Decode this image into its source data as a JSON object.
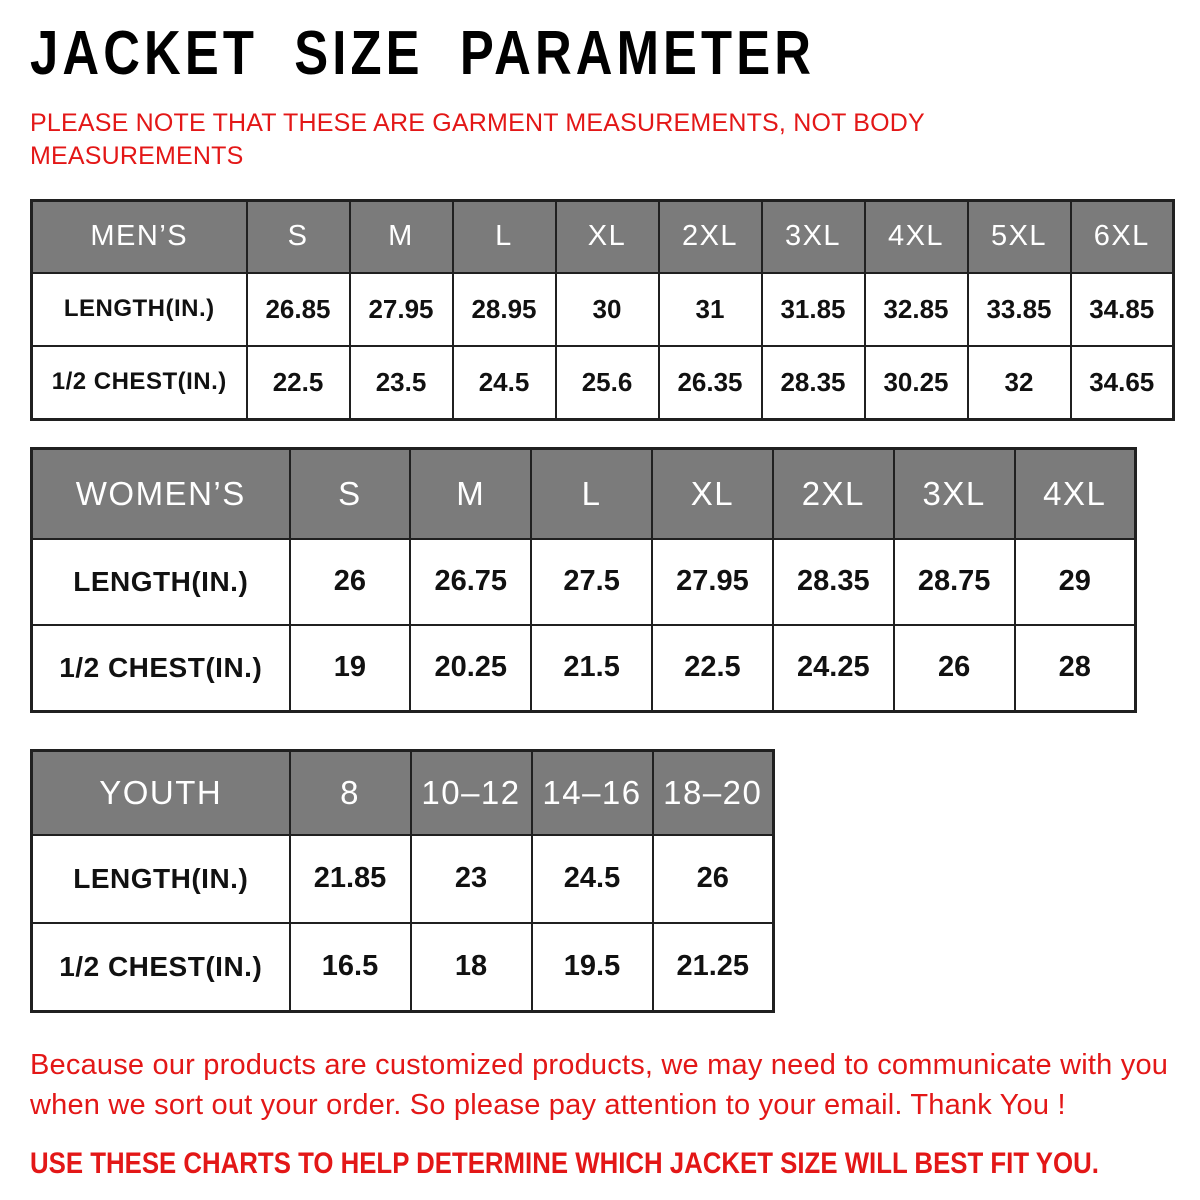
{
  "title": "JACKET SIZE PARAMETER",
  "note": {
    "lines": [
      "PLEASE NOTE THAT THESE ARE GARMENT MEASUREMENTS, NOT BODY",
      "MEASUREMENTS"
    ]
  },
  "colors": {
    "header_bg": "#7b7b7b",
    "header_text": "#ffffff",
    "accent_red": "#e31717",
    "border": "#202020",
    "cell_text": "#111111"
  },
  "mens": {
    "header": [
      "MEN’S",
      "S",
      "M",
      "L",
      "XL",
      "2XL",
      "3XL",
      "4XL",
      "5XL",
      "6XL"
    ],
    "rows": [
      {
        "label": "LENGTH(IN.)",
        "values": [
          "26.85",
          "27.95",
          "28.95",
          "30",
          "31",
          "31.85",
          "32.85",
          "33.85",
          "34.85"
        ]
      },
      {
        "label": "1/2 CHEST(IN.)",
        "values": [
          "22.5",
          "23.5",
          "24.5",
          "25.6",
          "26.35",
          "28.35",
          "30.25",
          "32",
          "34.65"
        ]
      }
    ]
  },
  "womens": {
    "header": [
      "WOMEN’S",
      "S",
      "M",
      "L",
      "XL",
      "2XL",
      "3XL",
      "4XL"
    ],
    "rows": [
      {
        "label": "LENGTH(IN.)",
        "values": [
          "26",
          "26.75",
          "27.5",
          "27.95",
          "28.35",
          "28.75",
          "29"
        ]
      },
      {
        "label": "1/2 CHEST(IN.)",
        "values": [
          "19",
          "20.25",
          "21.5",
          "22.5",
          "24.25",
          "26",
          "28"
        ]
      }
    ]
  },
  "youth": {
    "header": [
      "YOUTH",
      "8",
      "10–12",
      "14–16",
      "18–20"
    ],
    "rows": [
      {
        "label": "LENGTH(IN.)",
        "values": [
          "21.85",
          "23",
          "24.5",
          "26"
        ]
      },
      {
        "label": "1/2 CHEST(IN.)",
        "values": [
          "16.5",
          "18",
          "19.5",
          "21.25"
        ]
      }
    ]
  },
  "footer": {
    "paragraph_lines": [
      "Because our products are customized products, we may need to communicate with you",
      "when we sort out your order. So please pay attention to your email. Thank You !"
    ],
    "caps_line": "USE THESE CHARTS TO HELP DETERMINE WHICH JACKET SIZE WILL BEST FIT YOU."
  }
}
